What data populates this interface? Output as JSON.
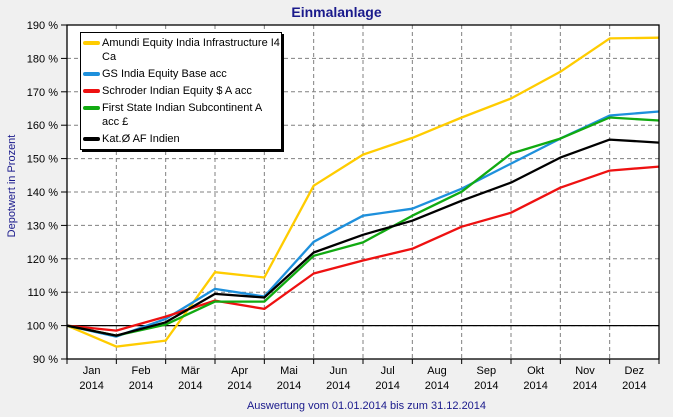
{
  "chart_data": {
    "type": "line",
    "title": "Einmalanlage",
    "xlabel": "Auswertung vom 01.01.2014 bis zum 31.12.2014",
    "ylabel": "Depotwert in Prozent",
    "ylim": [
      90,
      190
    ],
    "yticks": [
      "90 %",
      "100 %",
      "110 %",
      "120 %",
      "130 %",
      "140 %",
      "150 %",
      "160 %",
      "170 %",
      "180 %",
      "190 %"
    ],
    "ytick_values": [
      90,
      100,
      110,
      120,
      130,
      140,
      150,
      160,
      170,
      180,
      190
    ],
    "xticks": [
      {
        "month": "Jan",
        "year": "2014"
      },
      {
        "month": "Feb",
        "year": "2014"
      },
      {
        "month": "Mär",
        "year": "2014"
      },
      {
        "month": "Apr",
        "year": "2014"
      },
      {
        "month": "Mai",
        "year": "2014"
      },
      {
        "month": "Jun",
        "year": "2014"
      },
      {
        "month": "Jul",
        "year": "2014"
      },
      {
        "month": "Aug",
        "year": "2014"
      },
      {
        "month": "Sep",
        "year": "2014"
      },
      {
        "month": "Okt",
        "year": "2014"
      },
      {
        "month": "Nov",
        "year": "2014"
      },
      {
        "month": "Dez",
        "year": "2014"
      }
    ],
    "x": [
      "01.01.2014",
      "01.02.2014",
      "01.03.2014",
      "01.04.2014",
      "01.05.2014",
      "01.06.2014",
      "01.07.2014",
      "01.08.2014",
      "01.09.2014",
      "01.10.2014",
      "01.11.2014",
      "01.12.2014",
      "31.12.2014"
    ],
    "grid": true,
    "reference_line": 100,
    "legend_position": "top-left",
    "series": [
      {
        "name": "Amundi Equity India Infrastructure I4 Ca",
        "color": "#ffcc00",
        "values": [
          100,
          93.7,
          95.5,
          116,
          114.4,
          141.9,
          151.2,
          156.2,
          162.3,
          168,
          176,
          186,
          186.2
        ]
      },
      {
        "name": "GS India Equity Base acc",
        "color": "#1e90dc",
        "values": [
          100,
          96.7,
          102,
          111,
          108.7,
          125.1,
          132.9,
          135,
          141,
          148.5,
          156,
          162.9,
          164.1
        ]
      },
      {
        "name": "Schroder Indian Equity $ A acc",
        "color": "#ee1111",
        "values": [
          100,
          98.5,
          102.7,
          107.5,
          105,
          115.6,
          119.5,
          123,
          129.6,
          133.8,
          141.3,
          146.4,
          147.6
        ]
      },
      {
        "name": "First State Indian Subcontinent A acc £",
        "color": "#11aa11",
        "values": [
          100,
          97,
          100.3,
          107.2,
          107.2,
          120.9,
          124.9,
          132.9,
          140.1,
          151.5,
          156,
          162.3,
          161.4
        ]
      },
      {
        "name": "Kat.Ø AF Indien",
        "color": "#000000",
        "values": [
          100,
          97,
          101,
          109.5,
          108.4,
          121.9,
          127.2,
          131.4,
          137.4,
          142.8,
          150.3,
          155.7,
          154.8
        ]
      }
    ],
    "legend_lines": [
      [
        "Amundi Equity India Infrastructure I4",
        "Ca"
      ],
      [
        "GS India Equity Base acc"
      ],
      [
        "Schroder Indian Equity $ A acc"
      ],
      [
        "First State Indian Subcontinent A",
        "acc £"
      ],
      [
        "Kat.Ø AF Indien"
      ]
    ]
  }
}
